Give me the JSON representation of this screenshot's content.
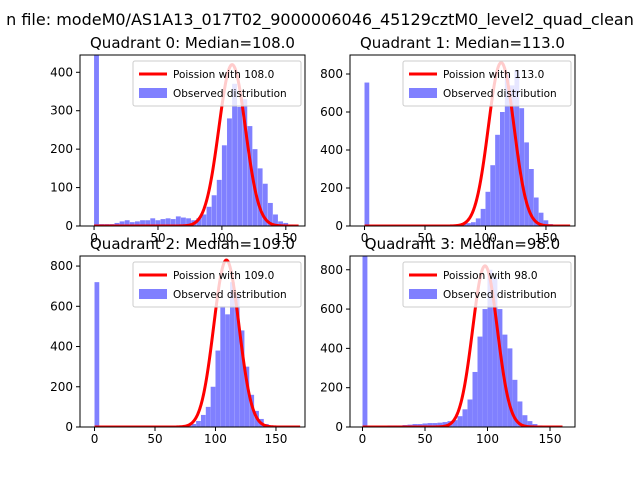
{
  "figure": {
    "title": "n file: modeM0/AS1A13_017T02_9000006046_45129cztM0_level2_quad_clean"
  },
  "colors": {
    "hist": "#8080ff",
    "fit": "#ff0000",
    "legend_border": "#cccccc"
  },
  "chart_data": [
    {
      "type": "bar",
      "title": "Quadrant 0: Median=108.0",
      "xlim": [
        -11,
        165
      ],
      "ylim": [
        0,
        445
      ],
      "xticks": [
        0,
        50,
        100,
        150
      ],
      "yticks": [
        0,
        100,
        200,
        300,
        400
      ],
      "legend": {
        "placement": "top-right",
        "entries": [
          "Poission with 108.0",
          "Observed distribution"
        ]
      },
      "hist": {
        "bin_width": 3.7,
        "x": [
          0,
          4,
          8,
          12,
          16,
          20,
          24,
          28,
          32,
          36,
          40,
          44,
          48,
          52,
          56,
          60,
          64,
          68,
          72,
          76,
          80,
          84,
          88,
          92,
          96,
          100,
          104,
          108,
          112,
          116,
          120,
          124,
          128,
          132,
          136,
          140,
          144,
          148,
          152,
          156,
          160
        ],
        "values": [
          445,
          5,
          5,
          5,
          8,
          12,
          15,
          10,
          12,
          15,
          15,
          20,
          15,
          18,
          20,
          18,
          25,
          22,
          20,
          15,
          20,
          30,
          50,
          80,
          120,
          210,
          280,
          370,
          310,
          330,
          260,
          200,
          150,
          110,
          60,
          30,
          12,
          8,
          4,
          2,
          1
        ]
      },
      "fit": {
        "label": "Poission with 108.0",
        "mean": 108,
        "peak": 420,
        "sigma": 10.39,
        "x_range": [
          0,
          160
        ]
      }
    },
    {
      "type": "bar",
      "title": "Quadrant 1: Median=113.0",
      "xlim": [
        -12,
        174
      ],
      "ylim": [
        0,
        900
      ],
      "xticks": [
        0,
        50,
        100,
        150
      ],
      "yticks": [
        0,
        200,
        400,
        600,
        800
      ],
      "legend": {
        "placement": "top-right",
        "entries": [
          "Poission with 113.0",
          "Observed distribution"
        ]
      },
      "hist": {
        "bin_width": 3.8,
        "x": [
          0,
          4,
          8,
          12,
          16,
          20,
          24,
          28,
          32,
          36,
          40,
          44,
          48,
          52,
          56,
          60,
          64,
          68,
          72,
          76,
          80,
          84,
          88,
          92,
          96,
          100,
          104,
          108,
          112,
          116,
          120,
          124,
          128,
          132,
          136,
          140,
          144,
          148,
          152,
          156,
          160,
          164,
          168
        ],
        "values": [
          755,
          5,
          3,
          3,
          3,
          3,
          3,
          3,
          3,
          3,
          3,
          3,
          3,
          3,
          3,
          3,
          5,
          5,
          5,
          8,
          10,
          15,
          20,
          40,
          90,
          180,
          320,
          480,
          600,
          800,
          740,
          820,
          620,
          440,
          300,
          150,
          70,
          30,
          10,
          5,
          2,
          1,
          1
        ]
      },
      "fit": {
        "label": "Poission with 113.0",
        "mean": 113,
        "peak": 860,
        "sigma": 10.63,
        "x_range": [
          0,
          170
        ]
      }
    },
    {
      "type": "bar",
      "title": "Quadrant 2: Median=109.0",
      "xlim": [
        -12,
        174
      ],
      "ylim": [
        0,
        850
      ],
      "xticks": [
        0,
        50,
        100,
        150
      ],
      "yticks": [
        0,
        200,
        400,
        600,
        800
      ],
      "legend": {
        "placement": "top-right",
        "entries": [
          "Poission with 109.0",
          "Observed distribution"
        ]
      },
      "hist": {
        "bin_width": 3.8,
        "x": [
          0,
          4,
          8,
          12,
          16,
          20,
          24,
          28,
          32,
          36,
          40,
          44,
          48,
          52,
          56,
          60,
          64,
          68,
          72,
          76,
          80,
          84,
          88,
          92,
          96,
          100,
          104,
          108,
          112,
          116,
          120,
          124,
          128,
          132,
          136,
          140,
          144,
          148,
          152,
          156,
          160,
          164,
          168
        ],
        "values": [
          720,
          3,
          3,
          3,
          3,
          3,
          3,
          3,
          3,
          3,
          3,
          3,
          3,
          3,
          3,
          3,
          5,
          5,
          5,
          8,
          15,
          30,
          60,
          100,
          200,
          380,
          600,
          560,
          720,
          660,
          480,
          300,
          160,
          80,
          40,
          15,
          8,
          4,
          2,
          1,
          1,
          1,
          1
        ]
      },
      "fit": {
        "label": "Poission with 109.0",
        "mean": 109,
        "peak": 830,
        "sigma": 10.44,
        "x_range": [
          0,
          170
        ]
      }
    },
    {
      "type": "bar",
      "title": "Quadrant 3: Median=98.0",
      "xlim": [
        -10,
        170
      ],
      "ylim": [
        0,
        870
      ],
      "xticks": [
        0,
        50,
        100,
        150
      ],
      "yticks": [
        0,
        200,
        400,
        600,
        800
      ],
      "legend": {
        "placement": "top-right",
        "entries": [
          "Poission with 98.0",
          "Observed distribution"
        ]
      },
      "hist": {
        "bin_width": 3.8,
        "x": [
          0,
          4,
          8,
          12,
          16,
          20,
          24,
          28,
          32,
          36,
          40,
          44,
          48,
          52,
          56,
          60,
          64,
          68,
          72,
          76,
          80,
          84,
          88,
          92,
          96,
          100,
          104,
          108,
          112,
          116,
          120,
          124,
          128,
          132,
          136,
          140,
          144,
          148,
          152,
          156,
          160
        ],
        "values": [
          870,
          5,
          5,
          5,
          5,
          8,
          8,
          8,
          10,
          12,
          15,
          15,
          18,
          20,
          20,
          22,
          25,
          30,
          35,
          55,
          90,
          140,
          280,
          460,
          600,
          800,
          760,
          600,
          470,
          400,
          240,
          130,
          60,
          30,
          15,
          8,
          4,
          2,
          1,
          1,
          1
        ]
      },
      "fit": {
        "label": "Poission with 98.0",
        "mean": 98,
        "peak": 820,
        "sigma": 9.9,
        "x_range": [
          0,
          160
        ]
      }
    }
  ]
}
